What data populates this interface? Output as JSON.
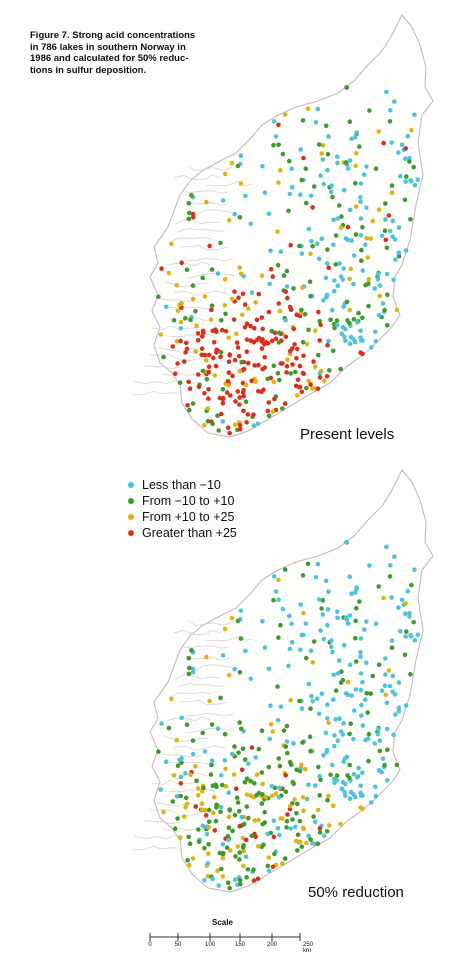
{
  "caption": "Figure 7.  Strong acid concentrations\nin 786 lakes in southern Norway in\n1986 and calculated for 50% reduc-\ntions in sulfur deposition.",
  "maps": [
    {
      "label": "Present levels",
      "scenario": "present"
    },
    {
      "label": "50% reduction",
      "scenario": "reduced"
    }
  ],
  "legend": [
    {
      "label": "Less than  −10",
      "color": "#4fc3dc"
    },
    {
      "label": "From  −10 to  +10",
      "color": "#3e9a2c"
    },
    {
      "label": "From  +10 to  +25",
      "color": "#e0b214"
    },
    {
      "label": "Greater than  +25",
      "color": "#d8301f"
    }
  ],
  "scale": {
    "title": "Scale",
    "ticks": [
      "0",
      "50",
      "100",
      "150",
      "200",
      "250 km"
    ]
  }
}
